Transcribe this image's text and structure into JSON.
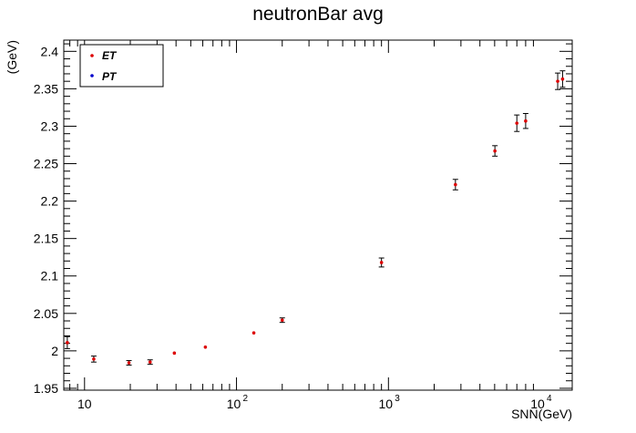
{
  "chart_data": {
    "type": "scatter",
    "title": "neutronBar avg",
    "xlabel": "SNN(GeV)",
    "ylabel": "(GeV)",
    "xscale": "log",
    "xlim": [
      7.3,
      16200
    ],
    "ylim": [
      1.9475,
      2.415
    ],
    "y_ticks": [
      "1.95",
      "2",
      "2.05",
      "2.1",
      "2.15",
      "2.2",
      "2.25",
      "2.3",
      "2.35",
      "2.4"
    ],
    "x_tick_labels": [
      {
        "value": 10,
        "base": "10",
        "exp": ""
      },
      {
        "value": 100,
        "base": "10",
        "exp": "2"
      },
      {
        "value": 1000,
        "base": "10",
        "exp": "3"
      },
      {
        "value": 10000,
        "base": "10",
        "exp": "4"
      }
    ],
    "legend": {
      "position": "top-left",
      "entries": [
        {
          "label": "ET",
          "color": "#dd0000"
        },
        {
          "label": "PT",
          "color": "#0000cc"
        }
      ]
    },
    "series": [
      {
        "name": "ET",
        "color": "#dd0000",
        "points": [
          {
            "x": 7.7,
            "y": 2.011,
            "err": 0.008
          },
          {
            "x": 11.5,
            "y": 1.989,
            "err": 0.004
          },
          {
            "x": 19.6,
            "y": 1.984,
            "err": 0.003
          },
          {
            "x": 27,
            "y": 1.985,
            "err": 0.003
          },
          {
            "x": 39,
            "y": 1.997,
            "err": 0.002
          },
          {
            "x": 62.4,
            "y": 2.005,
            "err": 0.002
          },
          {
            "x": 130,
            "y": 2.024,
            "err": 0.002
          },
          {
            "x": 200,
            "y": 2.041,
            "err": 0.003
          },
          {
            "x": 900,
            "y": 2.118,
            "err": 0.006
          },
          {
            "x": 2760,
            "y": 2.222,
            "err": 0.007
          },
          {
            "x": 5020,
            "y": 2.267,
            "err": 0.007
          },
          {
            "x": 7000,
            "y": 2.304,
            "err": 0.011
          },
          {
            "x": 8000,
            "y": 2.307,
            "err": 0.01
          },
          {
            "x": 13000,
            "y": 2.36,
            "err": 0.011
          },
          {
            "x": 14000,
            "y": 2.363,
            "err": 0.011
          }
        ]
      }
    ],
    "grid": false
  }
}
